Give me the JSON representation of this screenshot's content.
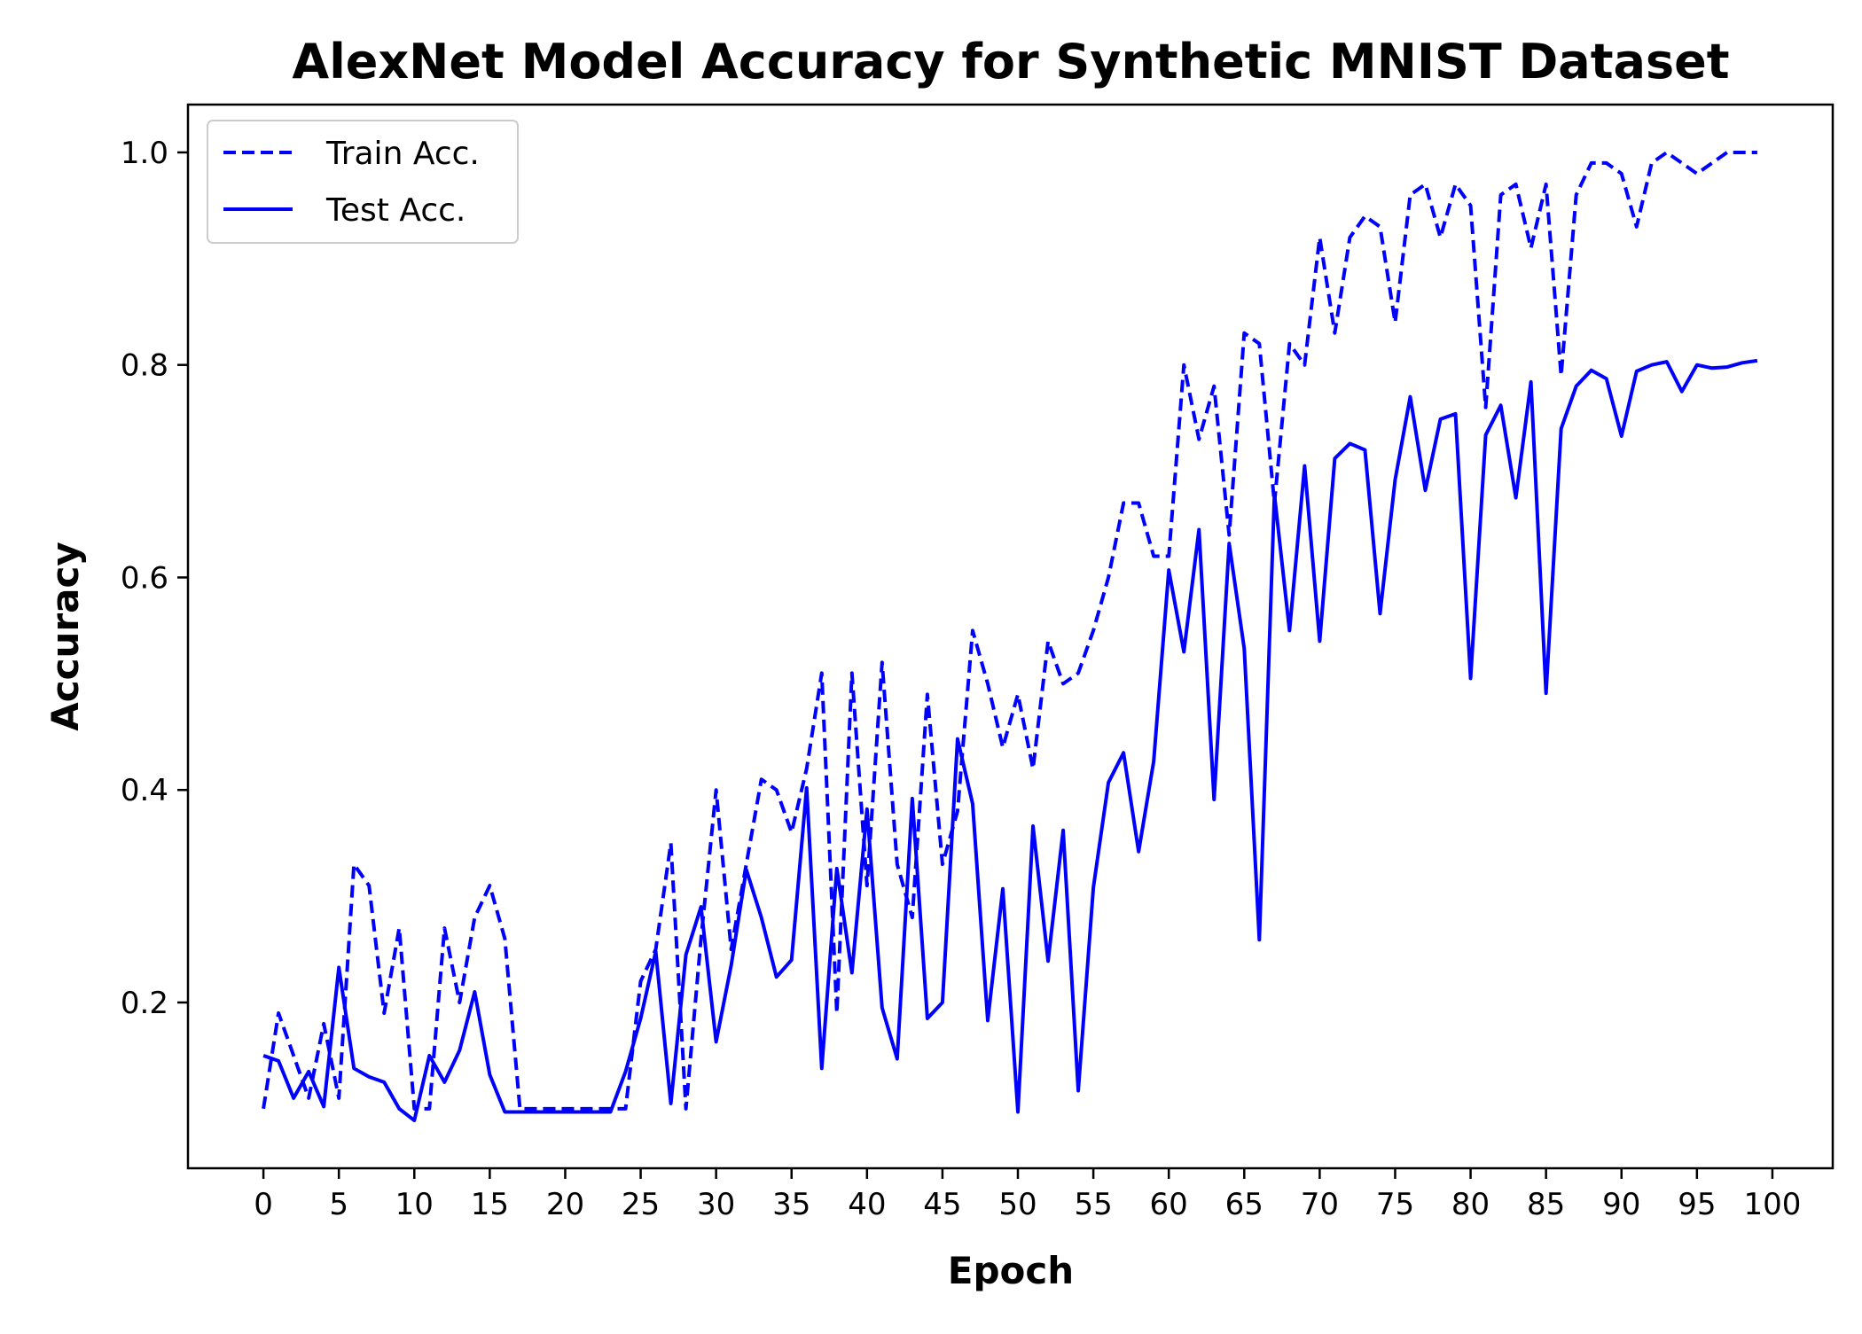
{
  "chart_data": {
    "type": "line",
    "title": "AlexNet Model Accuracy for Synthetic MNIST Dataset",
    "xlabel": "Epoch",
    "ylabel": "Accuracy",
    "xlim": [
      -5,
      104
    ],
    "ylim": [
      0.044,
      1.045
    ],
    "x_ticks": [
      0,
      5,
      10,
      15,
      20,
      25,
      30,
      35,
      40,
      45,
      50,
      55,
      60,
      65,
      70,
      75,
      80,
      85,
      90,
      95,
      100
    ],
    "x_tick_labels": [
      "0",
      "5",
      "10",
      "15",
      "20",
      "25",
      "30",
      "35",
      "40",
      "45",
      "50",
      "55",
      "60",
      "65",
      "70",
      "75",
      "80",
      "85",
      "90",
      "95",
      "100"
    ],
    "y_ticks": [
      0.2,
      0.4,
      0.6,
      0.8,
      1.0
    ],
    "y_tick_labels": [
      "0.2",
      "0.4",
      "0.6",
      "0.8",
      "1.0"
    ],
    "grid": false,
    "legend_position": "upper-left",
    "x": [
      0,
      1,
      2,
      3,
      4,
      5,
      6,
      7,
      8,
      9,
      10,
      11,
      12,
      13,
      14,
      15,
      16,
      17,
      18,
      19,
      20,
      21,
      22,
      23,
      24,
      25,
      26,
      27,
      28,
      29,
      30,
      31,
      32,
      33,
      34,
      35,
      36,
      37,
      38,
      39,
      40,
      41,
      42,
      43,
      44,
      45,
      46,
      47,
      48,
      49,
      50,
      51,
      52,
      53,
      54,
      55,
      56,
      57,
      58,
      59,
      60,
      61,
      62,
      63,
      64,
      65,
      66,
      67,
      68,
      69,
      70,
      71,
      72,
      73,
      74,
      75,
      76,
      77,
      78,
      79,
      80,
      81,
      82,
      83,
      84,
      85,
      86,
      87,
      88,
      89,
      90,
      91,
      92,
      93,
      94,
      95,
      96,
      97,
      98,
      99
    ],
    "series": [
      {
        "name": "Train Acc.",
        "style": "dashed",
        "color": "#0000ff",
        "values": [
          0.1,
          0.19,
          0.15,
          0.11,
          0.18,
          0.11,
          0.33,
          0.31,
          0.19,
          0.27,
          0.1,
          0.1,
          0.27,
          0.2,
          0.28,
          0.31,
          0.26,
          0.1,
          0.1,
          0.1,
          0.1,
          0.1,
          0.1,
          0.1,
          0.1,
          0.22,
          0.25,
          0.35,
          0.1,
          0.26,
          0.4,
          0.25,
          0.33,
          0.41,
          0.4,
          0.36,
          0.42,
          0.51,
          0.19,
          0.51,
          0.31,
          0.52,
          0.33,
          0.28,
          0.49,
          0.33,
          0.38,
          0.55,
          0.5,
          0.44,
          0.49,
          0.42,
          0.54,
          0.5,
          0.51,
          0.55,
          0.6,
          0.67,
          0.67,
          0.62,
          0.62,
          0.8,
          0.73,
          0.78,
          0.64,
          0.83,
          0.82,
          0.67,
          0.82,
          0.8,
          0.92,
          0.83,
          0.92,
          0.94,
          0.93,
          0.84,
          0.96,
          0.97,
          0.92,
          0.97,
          0.95,
          0.76,
          0.96,
          0.97,
          0.91,
          0.97,
          0.79,
          0.96,
          0.99,
          0.99,
          0.98,
          0.93,
          0.99,
          1.0,
          0.99,
          0.98,
          0.99,
          1.0,
          1.0,
          1.0
        ]
      },
      {
        "name": "Test Acc.",
        "style": "solid",
        "color": "#0000ff",
        "values": [
          0.15,
          0.145,
          0.11,
          0.135,
          0.102,
          0.233,
          0.138,
          0.13,
          0.125,
          0.1,
          0.089,
          0.15,
          0.125,
          0.155,
          0.21,
          0.132,
          0.097,
          0.097,
          0.097,
          0.097,
          0.097,
          0.097,
          0.097,
          0.097,
          0.135,
          0.185,
          0.248,
          0.105,
          0.245,
          0.29,
          0.163,
          0.235,
          0.325,
          0.28,
          0.224,
          0.24,
          0.402,
          0.138,
          0.326,
          0.228,
          0.382,
          0.195,
          0.147,
          0.392,
          0.185,
          0.2,
          0.448,
          0.387,
          0.183,
          0.307,
          0.097,
          0.366,
          0.239,
          0.362,
          0.117,
          0.308,
          0.407,
          0.435,
          0.342,
          0.427,
          0.607,
          0.53,
          0.645,
          0.391,
          0.632,
          0.533,
          0.259,
          0.678,
          0.55,
          0.705,
          0.54,
          0.712,
          0.726,
          0.72,
          0.566,
          0.692,
          0.77,
          0.682,
          0.749,
          0.754,
          0.505,
          0.734,
          0.762,
          0.675,
          0.784,
          0.491,
          0.74,
          0.78,
          0.795,
          0.787,
          0.733,
          0.794,
          0.8,
          0.803,
          0.775,
          0.8,
          0.797,
          0.798,
          0.802,
          0.804
        ]
      }
    ]
  }
}
